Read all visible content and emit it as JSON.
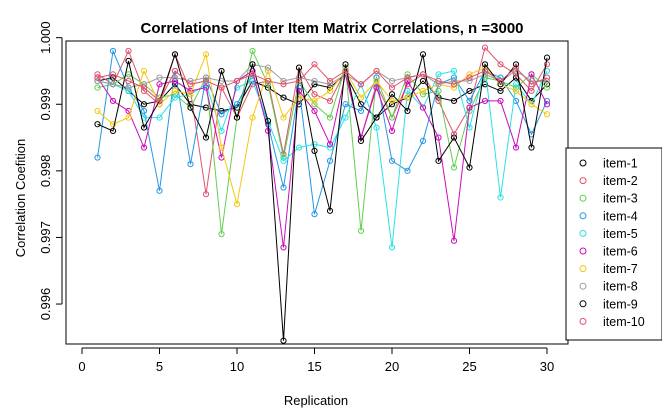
{
  "chart_data": {
    "type": "line",
    "title": "Correlations of Inter Item Matrix Correlations, n =3000",
    "xlabel": "Replication",
    "ylabel": "Correlation Coefition",
    "xlim": [
      1,
      30
    ],
    "ylim": [
      0.9954,
      0.99995
    ],
    "x_ticks": [
      0,
      5,
      10,
      15,
      20,
      25,
      30
    ],
    "y_ticks": [
      0.996,
      0.997,
      0.998,
      0.999,
      1.0
    ],
    "y_tick_labels": [
      "0.996",
      "0.997",
      "0.998",
      "0.999",
      "1.000"
    ],
    "legend_position": "right",
    "x": [
      1,
      2,
      3,
      4,
      5,
      6,
      7,
      8,
      9,
      10,
      11,
      12,
      13,
      14,
      15,
      16,
      17,
      18,
      19,
      20,
      21,
      22,
      23,
      24,
      25,
      26,
      27,
      28,
      29,
      30
    ],
    "series": [
      {
        "name": "item-1",
        "color": "#000000",
        "values": [
          0.99935,
          0.9994,
          0.9992,
          0.999,
          0.99905,
          0.9993,
          0.999,
          0.99895,
          0.9989,
          0.99895,
          0.99935,
          0.99925,
          0.9991,
          0.999,
          0.9993,
          0.99925,
          0.99945,
          0.999,
          0.9988,
          0.999,
          0.9991,
          0.99935,
          0.9991,
          0.99905,
          0.9992,
          0.9993,
          0.9992,
          0.9994,
          0.99905,
          0.9993
        ]
      },
      {
        "name": "item-2",
        "color": "#DF536B",
        "values": [
          0.99945,
          0.9993,
          0.9998,
          0.9992,
          0.999,
          0.99975,
          0.9992,
          0.99765,
          0.99925,
          0.9988,
          0.9993,
          0.99935,
          0.99825,
          0.99955,
          0.99915,
          0.99905,
          0.9995,
          0.9985,
          0.9993,
          0.9988,
          0.9993,
          0.99945,
          0.99905,
          0.99855,
          0.99895,
          0.99985,
          0.9996,
          0.99945,
          0.9992,
          0.9996
        ]
      },
      {
        "name": "item-3",
        "color": "#61D04F",
        "values": [
          0.99925,
          0.9993,
          0.99945,
          0.9993,
          0.9991,
          0.99915,
          0.99895,
          0.9994,
          0.99705,
          0.9988,
          0.9998,
          0.9993,
          0.9982,
          0.99935,
          0.999,
          0.9988,
          0.99955,
          0.9971,
          0.9994,
          0.9988,
          0.99945,
          0.99915,
          0.9992,
          0.99805,
          0.9989,
          0.9994,
          0.99935,
          0.99925,
          0.99945,
          0.99925
        ]
      },
      {
        "name": "item-4",
        "color": "#2297E6",
        "values": [
          0.9982,
          0.9998,
          0.99925,
          0.9989,
          0.9977,
          0.9995,
          0.9981,
          0.9994,
          0.99885,
          0.999,
          0.99945,
          0.9987,
          0.99775,
          0.99925,
          0.99735,
          0.99815,
          0.999,
          0.9989,
          0.9994,
          0.99815,
          0.998,
          0.99845,
          0.9993,
          0.9994,
          0.99905,
          0.9995,
          0.9994,
          0.99905,
          0.99855,
          0.99905
        ]
      },
      {
        "name": "item-5",
        "color": "#28E2E5",
        "values": [
          0.99935,
          0.9993,
          0.9992,
          0.9988,
          0.9988,
          0.9991,
          0.99915,
          0.9993,
          0.9986,
          0.99925,
          0.99935,
          0.99875,
          0.99815,
          0.99835,
          0.9984,
          0.99835,
          0.9988,
          0.9993,
          0.99865,
          0.99685,
          0.9992,
          0.99895,
          0.99945,
          0.9995,
          0.99865,
          0.99955,
          0.9976,
          0.9993,
          0.999,
          0.9995
        ]
      },
      {
        "name": "item-6",
        "color": "#CD0BBC",
        "values": [
          0.9994,
          0.99905,
          0.9989,
          0.99835,
          0.9993,
          0.99935,
          0.9992,
          0.99925,
          0.9982,
          0.99935,
          0.9995,
          0.9986,
          0.99685,
          0.9992,
          0.9989,
          0.9984,
          0.99945,
          0.9985,
          0.99925,
          0.9986,
          0.99935,
          0.99895,
          0.9985,
          0.99695,
          0.99895,
          0.99905,
          0.99905,
          0.99835,
          0.99945,
          0.999
        ]
      },
      {
        "name": "item-7",
        "color": "#F5C710",
        "values": [
          0.9989,
          0.9987,
          0.9988,
          0.9995,
          0.999,
          0.9992,
          0.99915,
          0.99975,
          0.99835,
          0.9975,
          0.9988,
          0.9995,
          0.9988,
          0.9991,
          0.99905,
          0.9992,
          0.9995,
          0.9991,
          0.99935,
          0.99905,
          0.9991,
          0.9992,
          0.9993,
          0.99925,
          0.99945,
          0.99955,
          0.9993,
          0.9992,
          0.999,
          0.99885
        ]
      },
      {
        "name": "item-8",
        "color": "#9E9E9E",
        "values": [
          0.99935,
          0.9993,
          0.99925,
          0.9993,
          0.9994,
          0.9994,
          0.99935,
          0.9994,
          0.99935,
          0.99935,
          0.9996,
          0.99955,
          0.99935,
          0.9994,
          0.99935,
          0.9993,
          0.99945,
          0.9993,
          0.9995,
          0.99935,
          0.9994,
          0.99945,
          0.9993,
          0.99935,
          0.99935,
          0.99945,
          0.99935,
          0.9995,
          0.99935,
          0.99935
        ]
      },
      {
        "name": "item-9",
        "color": "#000000",
        "values": [
          0.9987,
          0.9986,
          0.99965,
          0.99865,
          0.99905,
          0.99975,
          0.99895,
          0.9985,
          0.9995,
          0.9988,
          0.9996,
          0.99875,
          0.99545,
          0.99955,
          0.9983,
          0.9974,
          0.9996,
          0.99845,
          0.9988,
          0.99915,
          0.9989,
          0.99975,
          0.99815,
          0.9985,
          0.99805,
          0.9996,
          0.9993,
          0.9996,
          0.99835,
          0.9997
        ]
      },
      {
        "name": "item-10",
        "color": "#DF536B",
        "values": [
          0.9994,
          0.99945,
          0.99935,
          0.99925,
          0.99905,
          0.9995,
          0.9993,
          0.99935,
          0.99925,
          0.99935,
          0.99945,
          0.99935,
          0.9993,
          0.99935,
          0.9996,
          0.99935,
          0.9995,
          0.9993,
          0.9995,
          0.99925,
          0.9994,
          0.99945,
          0.99935,
          0.9993,
          0.9994,
          0.9995,
          0.99935,
          0.99955,
          0.9993,
          0.9994
        ]
      }
    ]
  }
}
